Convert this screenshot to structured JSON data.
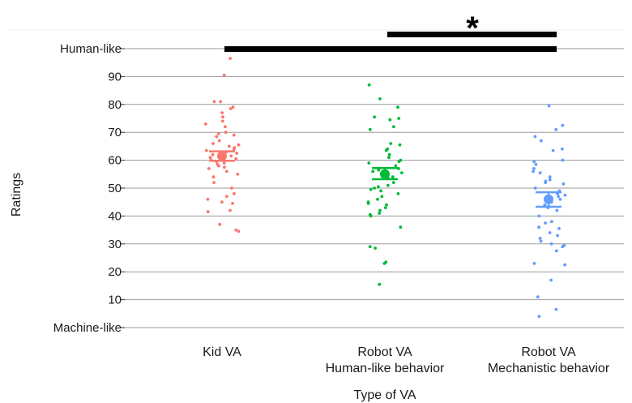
{
  "chart_data": {
    "type": "scatter",
    "xlabel": "Type of VA",
    "ylabel": "Ratings",
    "ylim": [
      0,
      100
    ],
    "y_ticks": [
      {
        "value": 0,
        "label": "Machine-like"
      },
      {
        "value": 10,
        "label": "10"
      },
      {
        "value": 20,
        "label": "20"
      },
      {
        "value": 30,
        "label": "30"
      },
      {
        "value": 40,
        "label": "40"
      },
      {
        "value": 50,
        "label": "50"
      },
      {
        "value": 60,
        "label": "60"
      },
      {
        "value": 70,
        "label": "70"
      },
      {
        "value": 80,
        "label": "80"
      },
      {
        "value": 90,
        "label": "90"
      },
      {
        "value": 100,
        "label": "Human-like"
      }
    ],
    "grid": "horizontal",
    "significance_marker": "*",
    "significance_bars": [
      {
        "from": 0,
        "to": 2
      },
      {
        "from": 1,
        "to": 2
      }
    ],
    "series": [
      {
        "category_lines": [
          "Kid VA"
        ],
        "color": "#F8766D",
        "mean": 61.5,
        "ci_low": 59.8,
        "ci_high": 63.2,
        "points": [
          96.5,
          90.5,
          81,
          81,
          79,
          78.5,
          77,
          75.5,
          74,
          73,
          72,
          70,
          69.5,
          69,
          68.5,
          67,
          66,
          65.5,
          65,
          64.5,
          64,
          63.5,
          63,
          62.5,
          62,
          61.5,
          61,
          60.5,
          60,
          59.5,
          59,
          58.5,
          58,
          57.5,
          57,
          56,
          55,
          54,
          52,
          50,
          48,
          47,
          46,
          45,
          44.5,
          42,
          41.5,
          37,
          34.5,
          35
        ]
      },
      {
        "category_lines": [
          "Robot VA",
          "Human-like behavior"
        ],
        "color": "#00BA38",
        "mean": 55,
        "ci_low": 53.2,
        "ci_high": 57.2,
        "points": [
          87,
          82,
          79,
          75.5,
          75,
          74.5,
          72,
          71,
          66,
          65.5,
          64,
          63.5,
          62,
          61,
          60,
          59.5,
          59,
          58,
          57,
          56.5,
          56,
          55.5,
          55,
          54,
          53.5,
          52,
          51,
          50.5,
          50,
          49.5,
          49,
          48,
          47,
          46,
          45,
          44.5,
          44,
          43,
          42,
          41,
          40.5,
          40,
          36,
          29,
          28.5,
          23.5,
          23,
          15.5
        ]
      },
      {
        "category_lines": [
          "Robot VA",
          "Mechanistic behavior"
        ],
        "color": "#619CFF",
        "mean": 46,
        "ci_low": 43.3,
        "ci_high": 48.5,
        "points": [
          79.5,
          72.5,
          71,
          68.5,
          67,
          64,
          63.5,
          60,
          59.5,
          58.5,
          57,
          56,
          55.5,
          54,
          53,
          52.5,
          52,
          51.5,
          50,
          49,
          48,
          47.5,
          47,
          46,
          45,
          44,
          43.5,
          43,
          42,
          40,
          38,
          37.5,
          36,
          35.5,
          34,
          33,
          32,
          31,
          30,
          29.5,
          29,
          27.5,
          23,
          22.5,
          17,
          11,
          6.5,
          4
        ]
      }
    ]
  }
}
